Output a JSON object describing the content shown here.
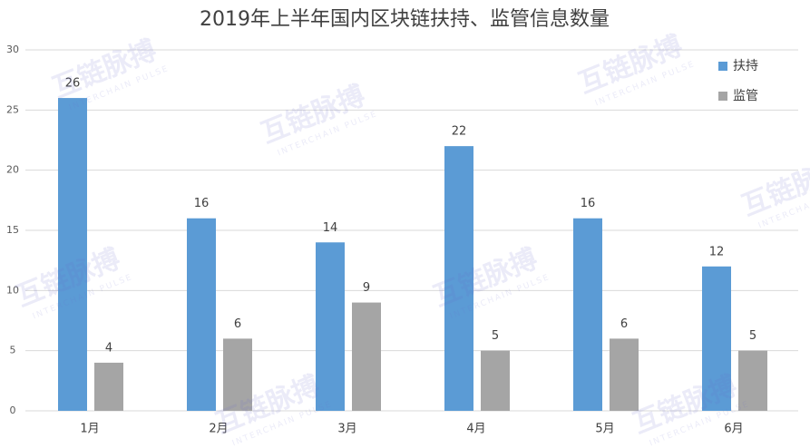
{
  "chart_data": {
    "type": "bar",
    "title": "2019年上半年国内区块链扶持、监管信息数量",
    "categories": [
      "1月",
      "2月",
      "3月",
      "4月",
      "5月",
      "6月"
    ],
    "series": [
      {
        "name": "扶持",
        "color": "#5b9bd5",
        "values": [
          26,
          16,
          14,
          22,
          16,
          12
        ]
      },
      {
        "name": "监管",
        "color": "#a5a5a5",
        "values": [
          4,
          6,
          9,
          5,
          6,
          5
        ]
      }
    ],
    "ylim": [
      0,
      30
    ],
    "yticks": [
      0,
      5,
      10,
      15,
      20,
      25,
      30
    ],
    "grid": true,
    "legend": "top-right",
    "watermark": {
      "text": "互链脉搏",
      "subtext": "INTERCHAIN PULSE"
    }
  }
}
